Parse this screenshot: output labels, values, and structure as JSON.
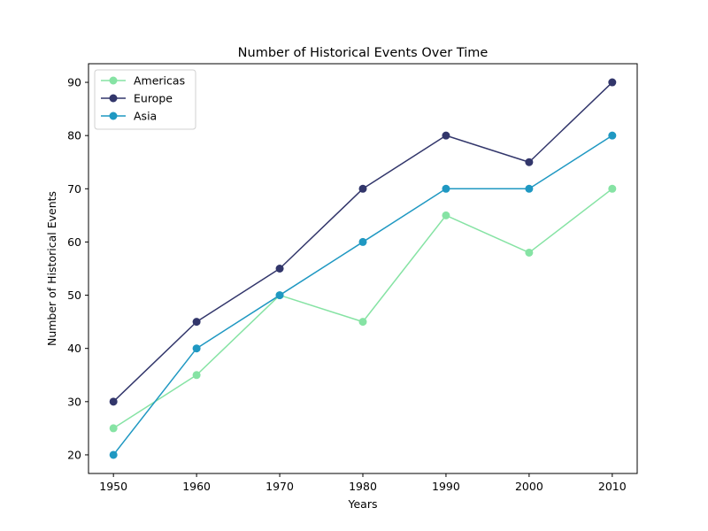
{
  "chart_data": {
    "type": "line",
    "title": "Number of Historical Events Over Time",
    "xlabel": "Years",
    "ylabel": "Number of Historical Events",
    "x": [
      1950,
      1960,
      1970,
      1980,
      1990,
      2000,
      2010
    ],
    "xlim": [
      1947.0,
      2013.0
    ],
    "ylim": [
      16.5,
      93.5
    ],
    "x_ticks": [
      1950,
      1960,
      1970,
      1980,
      1990,
      2000,
      2010
    ],
    "y_ticks": [
      20,
      30,
      40,
      50,
      60,
      70,
      80,
      90
    ],
    "grid": false,
    "legend_position": "upper-left",
    "series": [
      {
        "name": "Americas",
        "color": "#86e3a4",
        "values": [
          25,
          35,
          50,
          45,
          65,
          58,
          70
        ]
      },
      {
        "name": "Europe",
        "color": "#32366b",
        "values": [
          30,
          45,
          55,
          70,
          80,
          75,
          90
        ]
      },
      {
        "name": "Asia",
        "color": "#1f98c2",
        "values": [
          20,
          40,
          50,
          60,
          70,
          70,
          80
        ]
      }
    ]
  }
}
